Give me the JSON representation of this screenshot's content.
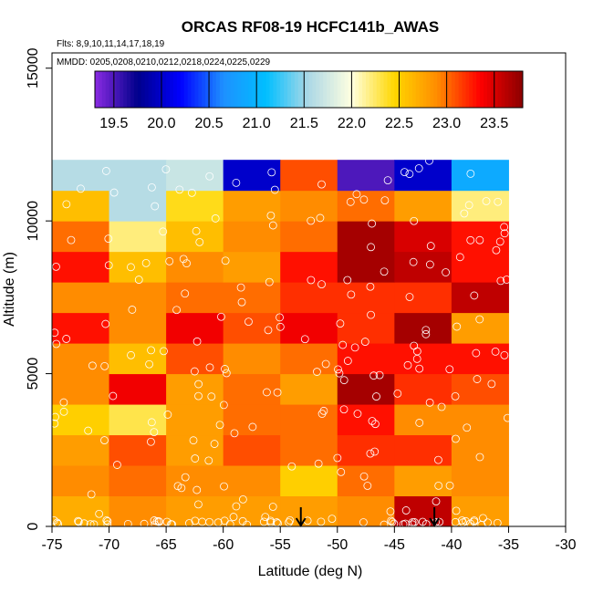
{
  "chart_data": {
    "type": "heatmap",
    "title": "ORCAS RF08-19 HCFC141b_AWAS",
    "flights_label": "Flts: 8,9,10,11,14,17,18,19",
    "dates_label": "MMDD: 0205,0208,0210,0212,0218,0224,0225,0229",
    "xlabel": "Latitude (deg N)",
    "ylabel": "Altitude (m)",
    "xlim": [
      -75,
      -30
    ],
    "ylim": [
      0,
      15500
    ],
    "xticks": [
      -75,
      -70,
      -65,
      -60,
      -55,
      -50,
      -45,
      -40,
      -35,
      -30
    ],
    "yticks": [
      0,
      5000,
      10000,
      15000
    ],
    "colorbar": {
      "min": 19.3,
      "max": 23.8,
      "ticks": [
        19.5,
        20.0,
        20.5,
        21.0,
        21.5,
        22.0,
        22.5,
        23.0,
        23.5
      ],
      "tick_labels": [
        "19.5",
        "20.0",
        "20.5",
        "21.0",
        "21.5",
        "22.0",
        "22.5",
        "23.0",
        "23.5"
      ],
      "stops": [
        "#8a2be2",
        "#00008b",
        "#0000ff",
        "#1e90ff",
        "#00bfff",
        "#add8e6",
        "#ffffe0",
        "#ffd700",
        "#ff8c00",
        "#ff0000",
        "#8b0000"
      ]
    },
    "lat_bins": [
      -75,
      -70,
      -65,
      -60,
      -55,
      -50,
      -45,
      -40,
      -35
    ],
    "alt_bins": [
      0,
      1000,
      2000,
      3000,
      4000,
      5000,
      6000,
      7000,
      8000,
      9000,
      10000,
      11000,
      12000
    ],
    "grid_values": [
      [
        22.7,
        22.9,
        22.8,
        22.8,
        22.8,
        22.9,
        23.6,
        22.8
      ],
      [
        22.9,
        23.0,
        22.9,
        22.9,
        22.5,
        23.0,
        22.8,
        22.9
      ],
      [
        22.8,
        23.1,
        22.8,
        23.1,
        23.0,
        23.2,
        23.2,
        22.9
      ],
      [
        22.5,
        22.3,
        22.8,
        23.0,
        23.0,
        23.3,
        22.9,
        22.9
      ],
      [
        22.9,
        23.4,
        22.8,
        23.0,
        22.8,
        23.7,
        23.2,
        23.1
      ],
      [
        22.9,
        22.6,
        23.1,
        22.9,
        23.0,
        23.3,
        23.3,
        23.3
      ],
      [
        23.3,
        22.9,
        23.4,
        23.1,
        23.4,
        23.2,
        23.7,
        22.8
      ],
      [
        22.9,
        22.9,
        23.0,
        23.0,
        23.2,
        23.2,
        23.2,
        23.6
      ],
      [
        23.3,
        22.6,
        22.9,
        22.8,
        23.3,
        23.7,
        23.6,
        23.3
      ],
      [
        23.0,
        22.2,
        22.6,
        22.9,
        23.0,
        23.7,
        23.5,
        23.3
      ],
      [
        22.6,
        21.6,
        22.4,
        22.8,
        22.9,
        23.0,
        22.8,
        22.2
      ],
      [
        21.6,
        21.6,
        21.7,
        20.0,
        23.1,
        19.5,
        20.0,
        20.9
      ]
    ],
    "arrows_lat": [
      -53.2,
      -41.5
    ]
  }
}
